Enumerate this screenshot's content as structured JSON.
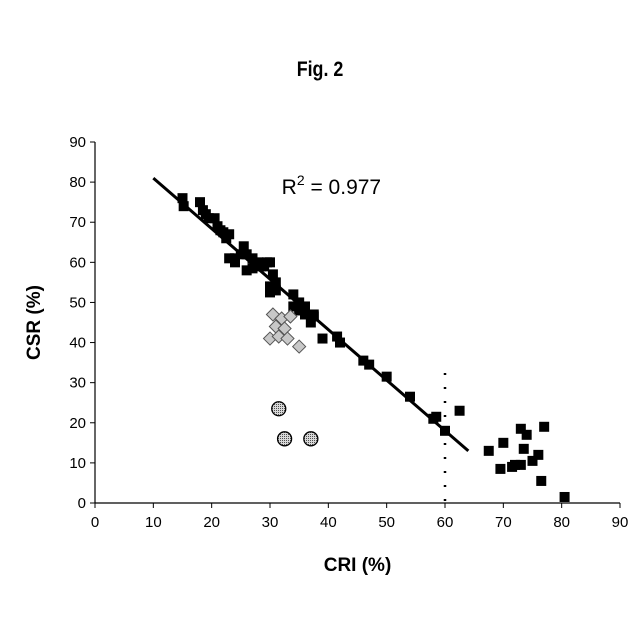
{
  "figure_title": "Fig. 2",
  "chart_data": {
    "type": "scatter",
    "title": "Fig. 2",
    "xlabel": "CRI (%)",
    "ylabel": "CSR (%)",
    "xlim": [
      0,
      90
    ],
    "ylim": [
      0,
      90
    ],
    "x_ticks": [
      "0",
      "10",
      "20",
      "30",
      "40",
      "50",
      "60",
      "70",
      "80",
      "90"
    ],
    "y_ticks": [
      "0",
      "10",
      "20",
      "30",
      "40",
      "50",
      "60",
      "70",
      "80",
      "90"
    ],
    "grid": false,
    "annotation": {
      "text": "R2 = 0.977",
      "base": "R",
      "sup": "2",
      "rest": " = 0.977",
      "x": 32,
      "y": 77
    },
    "series": [
      {
        "marker": "square",
        "color": "#000000",
        "points": [
          [
            15,
            76
          ],
          [
            15.2,
            74
          ],
          [
            18,
            75
          ],
          [
            18.5,
            73
          ],
          [
            19,
            72
          ],
          [
            19.5,
            71
          ],
          [
            20.5,
            71
          ],
          [
            21,
            69
          ],
          [
            21.5,
            68
          ],
          [
            22,
            67.5
          ],
          [
            22.5,
            66
          ],
          [
            23,
            67
          ],
          [
            23,
            61
          ],
          [
            24,
            61
          ],
          [
            24,
            60
          ],
          [
            25,
            62
          ],
          [
            25.5,
            64
          ],
          [
            26,
            62
          ],
          [
            26,
            58
          ],
          [
            27,
            61
          ],
          [
            27,
            58.5
          ],
          [
            28,
            60
          ],
          [
            28.5,
            59
          ],
          [
            29,
            59
          ],
          [
            29.5,
            60
          ],
          [
            30,
            60
          ],
          [
            30,
            54
          ],
          [
            30,
            52.5
          ],
          [
            30.5,
            57
          ],
          [
            31,
            55
          ],
          [
            31,
            53
          ],
          [
            34,
            52
          ],
          [
            34,
            49
          ],
          [
            35,
            50
          ],
          [
            35,
            48
          ],
          [
            36,
            47
          ],
          [
            36,
            49
          ],
          [
            37,
            45
          ],
          [
            37.5,
            46.5
          ],
          [
            37.5,
            47
          ],
          [
            39,
            41
          ],
          [
            41.5,
            41.5
          ],
          [
            42,
            40
          ],
          [
            46,
            35.5
          ],
          [
            47,
            34.5
          ],
          [
            50,
            31.5
          ],
          [
            54,
            26.5
          ],
          [
            58,
            21
          ],
          [
            58.5,
            21.5
          ],
          [
            60,
            18
          ],
          [
            62.5,
            23
          ],
          [
            67.5,
            13
          ],
          [
            69.5,
            8.5
          ],
          [
            70,
            15
          ],
          [
            71.5,
            9
          ],
          [
            72,
            9.5
          ],
          [
            73,
            18.5
          ],
          [
            73,
            9.5
          ],
          [
            73.5,
            13.5
          ],
          [
            74,
            17
          ],
          [
            75,
            10.5
          ],
          [
            76,
            12
          ],
          [
            76.5,
            5.5
          ],
          [
            77,
            19
          ],
          [
            80.5,
            1.5
          ]
        ]
      },
      {
        "marker": "diamond",
        "color": "#c8c8c8",
        "points": [
          [
            30,
            41
          ],
          [
            30.5,
            47
          ],
          [
            31,
            44
          ],
          [
            31.5,
            41.5
          ],
          [
            32,
            46
          ],
          [
            32.5,
            43.5
          ],
          [
            33,
            41
          ],
          [
            33.5,
            46.5
          ],
          [
            35,
            39
          ]
        ]
      },
      {
        "marker": "circle",
        "color": "#888888",
        "points": [
          [
            31.5,
            23.5
          ],
          [
            32.5,
            16
          ],
          [
            37,
            16
          ]
        ]
      }
    ],
    "trendline": {
      "x": [
        10,
        64
      ],
      "y": [
        81,
        13
      ]
    },
    "vertical_dotted_line": {
      "x": 60,
      "y": [
        0,
        35
      ]
    }
  }
}
